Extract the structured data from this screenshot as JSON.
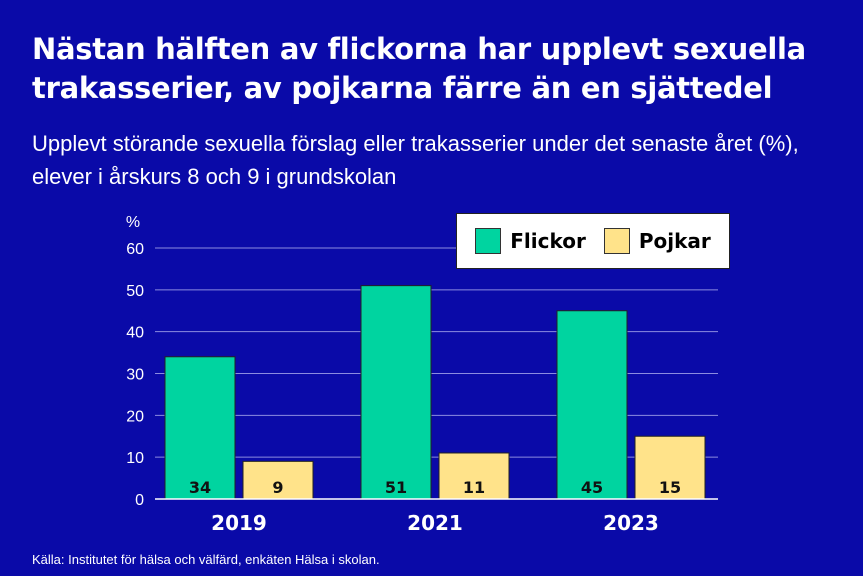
{
  "header": {
    "title": "Nästan hälften av flickorna har upplevt sexuella trakasserier, av pojkarna färre än en sjättedel",
    "subtitle": "Upplevt störande sexuella förslag eller trakasserier under det senaste året (%), elever i årskurs 8 och 9 i grundskolan"
  },
  "footer": {
    "source": "Källa: Institutet för hälsa och välfärd, enkäten Hälsa i skolan."
  },
  "colors": {
    "background": "#0A0AA8",
    "flickor": "#00D4A0",
    "pojkar": "#FFE38A",
    "gridline": "#8C8CE0"
  },
  "chart_data": {
    "type": "bar",
    "categories": [
      "2019",
      "2021",
      "2023"
    ],
    "series": [
      {
        "name": "Flickor",
        "values": [
          34,
          51,
          45
        ]
      },
      {
        "name": "Pojkar",
        "values": [
          9,
          11,
          15
        ]
      }
    ],
    "ylabel": "%",
    "ylim": [
      0,
      60
    ],
    "yticks": [
      0,
      10,
      20,
      30,
      40,
      50,
      60
    ],
    "grid": true,
    "legend_position": "top-right",
    "data_labels": true
  }
}
